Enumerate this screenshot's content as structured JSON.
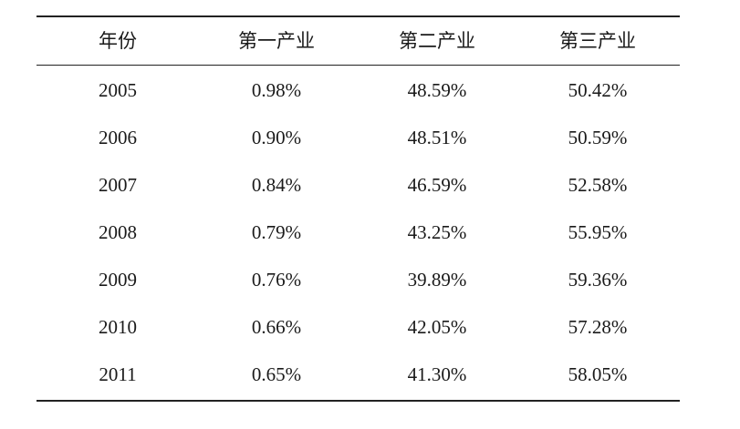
{
  "table": {
    "header": [
      "年份",
      "第一产业",
      "第二产业",
      "第三产业"
    ],
    "rows": [
      [
        "2005",
        "0.98%",
        "48.59%",
        "50.42%"
      ],
      [
        "2006",
        "0.90%",
        "48.51%",
        "50.59%"
      ],
      [
        "2007",
        "0.84%",
        "46.59%",
        "52.58%"
      ],
      [
        "2008",
        "0.79%",
        "43.25%",
        "55.95%"
      ],
      [
        "2009",
        "0.76%",
        "39.89%",
        "59.36%"
      ],
      [
        "2010",
        "0.66%",
        "42.05%",
        "57.28%"
      ],
      [
        "2011",
        "0.65%",
        "41.30%",
        "58.05%"
      ]
    ]
  }
}
